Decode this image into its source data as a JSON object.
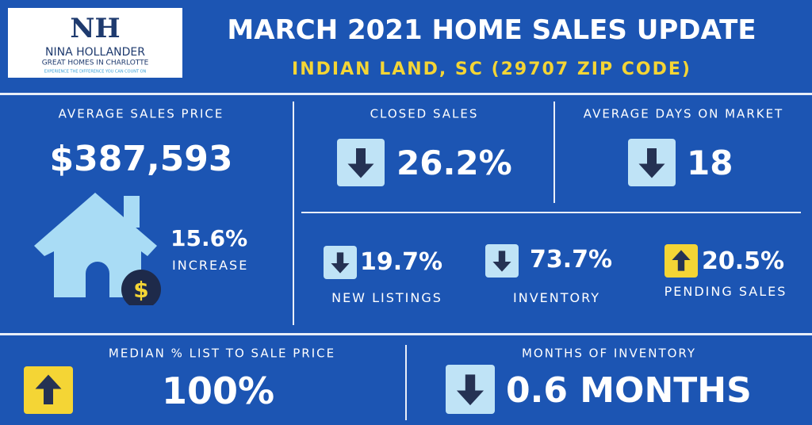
{
  "logo": {
    "initials": "NH",
    "name": "NINA HOLLANDER",
    "tagline": "GREAT HOMES IN CHARLOTTE",
    "slogan": "EXPERIENCE THE DIFFERENCE YOU CAN COUNT ON"
  },
  "header": {
    "title": "MARCH 2021 HOME SALES UPDATE",
    "subtitle": "INDIAN LAND, SC (29707 ZIP CODE)"
  },
  "average_sales_price": {
    "label": "AVERAGE SALES PRICE",
    "value": "$387,593",
    "change": "15.6%",
    "change_label": "INCREASE",
    "icon": "$"
  },
  "closed_sales": {
    "label": "CLOSED SALES",
    "value": "26.2%"
  },
  "average_days_on_market": {
    "label": "AVERAGE DAYS ON MARKET",
    "value": "18"
  },
  "new_listings": {
    "value": "19.7%",
    "label": "NEW LISTINGS"
  },
  "inventory": {
    "value": "73.7%",
    "label": "INVENTORY"
  },
  "pending_sales": {
    "value": "20.5%",
    "label": "PENDING SALES"
  },
  "median_list_to_sale": {
    "label": "MEDIAN % LIST TO SALE PRICE",
    "value": "100%"
  },
  "months_of_inventory": {
    "label": "MONTHS OF INVENTORY",
    "value": "0.6 MONTHS"
  }
}
